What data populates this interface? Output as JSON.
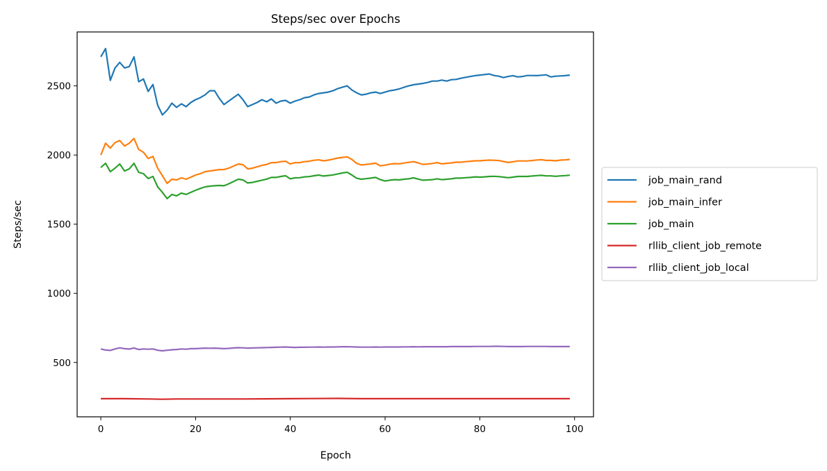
{
  "chart_data": {
    "type": "line",
    "title": "Steps/sec over Epochs",
    "xlabel": "Epoch",
    "ylabel": "Steps/sec",
    "xlim": [
      -5,
      104
    ],
    "ylim": [
      107,
      2890
    ],
    "xticks": [
      0,
      20,
      40,
      60,
      80,
      100
    ],
    "yticks": [
      500,
      1000,
      1500,
      2000,
      2500
    ],
    "legend_position": "center right (outside axes)",
    "grid": false,
    "series": [
      {
        "name": "job_main_rand",
        "color": "#1f77b4",
        "x": [
          0,
          1,
          2,
          3,
          4,
          5,
          6,
          7,
          8,
          9,
          10,
          11,
          12,
          13,
          14,
          15,
          16,
          17,
          18,
          19,
          20,
          21,
          22,
          23,
          24,
          25,
          26,
          27,
          28,
          29,
          30,
          31,
          32,
          33,
          34,
          35,
          36,
          37,
          38,
          39,
          40,
          41,
          42,
          43,
          44,
          45,
          46,
          47,
          48,
          49,
          50,
          51,
          52,
          53,
          54,
          55,
          56,
          57,
          58,
          59,
          60,
          61,
          62,
          63,
          64,
          65,
          66,
          67,
          68,
          69,
          70,
          71,
          72,
          73,
          74,
          75,
          76,
          77,
          78,
          79,
          80,
          81,
          82,
          83,
          84,
          85,
          86,
          87,
          88,
          89,
          90,
          91,
          92,
          93,
          94,
          95,
          96,
          97,
          98,
          99
        ],
        "values": [
          2710,
          2770,
          2540,
          2630,
          2670,
          2630,
          2640,
          2710,
          2530,
          2550,
          2460,
          2510,
          2360,
          2290,
          2325,
          2375,
          2345,
          2370,
          2350,
          2380,
          2400,
          2415,
          2435,
          2465,
          2465,
          2410,
          2365,
          2390,
          2415,
          2440,
          2400,
          2350,
          2365,
          2380,
          2400,
          2385,
          2405,
          2375,
          2390,
          2395,
          2375,
          2390,
          2400,
          2415,
          2420,
          2435,
          2445,
          2450,
          2455,
          2465,
          2480,
          2490,
          2500,
          2470,
          2450,
          2435,
          2440,
          2450,
          2455,
          2445,
          2455,
          2465,
          2470,
          2478,
          2490,
          2500,
          2508,
          2513,
          2518,
          2525,
          2535,
          2535,
          2542,
          2535,
          2545,
          2547,
          2555,
          2562,
          2568,
          2574,
          2578,
          2582,
          2586,
          2575,
          2570,
          2560,
          2568,
          2574,
          2565,
          2568,
          2575,
          2575,
          2574,
          2577,
          2580,
          2565,
          2570,
          2572,
          2574,
          2578
        ]
      },
      {
        "name": "job_main_infer",
        "color": "#ff7f0e",
        "x": [
          0,
          1,
          2,
          3,
          4,
          5,
          6,
          7,
          8,
          9,
          10,
          11,
          12,
          13,
          14,
          15,
          16,
          17,
          18,
          19,
          20,
          21,
          22,
          23,
          24,
          25,
          26,
          27,
          28,
          29,
          30,
          31,
          32,
          33,
          34,
          35,
          36,
          37,
          38,
          39,
          40,
          41,
          42,
          43,
          44,
          45,
          46,
          47,
          48,
          49,
          50,
          51,
          52,
          53,
          54,
          55,
          56,
          57,
          58,
          59,
          60,
          61,
          62,
          63,
          64,
          65,
          66,
          67,
          68,
          69,
          70,
          71,
          72,
          73,
          74,
          75,
          76,
          77,
          78,
          79,
          80,
          81,
          82,
          83,
          84,
          85,
          86,
          87,
          88,
          89,
          90,
          91,
          92,
          93,
          94,
          95,
          96,
          97,
          98,
          99
        ],
        "values": [
          2000,
          2085,
          2050,
          2090,
          2105,
          2065,
          2085,
          2120,
          2040,
          2020,
          1975,
          1990,
          1905,
          1850,
          1795,
          1825,
          1820,
          1835,
          1825,
          1840,
          1855,
          1865,
          1880,
          1885,
          1890,
          1895,
          1895,
          1905,
          1920,
          1935,
          1930,
          1900,
          1905,
          1915,
          1925,
          1932,
          1945,
          1945,
          1952,
          1955,
          1935,
          1945,
          1945,
          1952,
          1955,
          1962,
          1965,
          1958,
          1963,
          1970,
          1978,
          1983,
          1987,
          1968,
          1940,
          1928,
          1932,
          1936,
          1941,
          1922,
          1927,
          1934,
          1938,
          1936,
          1942,
          1947,
          1952,
          1943,
          1932,
          1935,
          1939,
          1945,
          1936,
          1940,
          1943,
          1948,
          1948,
          1952,
          1955,
          1958,
          1958,
          1961,
          1963,
          1962,
          1960,
          1953,
          1946,
          1951,
          1957,
          1957,
          1957,
          1960,
          1964,
          1966,
          1961,
          1961,
          1958,
          1963,
          1965,
          1968
        ]
      },
      {
        "name": "job_main",
        "color": "#2ca02c",
        "x": [
          0,
          1,
          2,
          3,
          4,
          5,
          6,
          7,
          8,
          9,
          10,
          11,
          12,
          13,
          14,
          15,
          16,
          17,
          18,
          19,
          20,
          21,
          22,
          23,
          24,
          25,
          26,
          27,
          28,
          29,
          30,
          31,
          32,
          33,
          34,
          35,
          36,
          37,
          38,
          39,
          40,
          41,
          42,
          43,
          44,
          45,
          46,
          47,
          48,
          49,
          50,
          51,
          52,
          53,
          54,
          55,
          56,
          57,
          58,
          59,
          60,
          61,
          62,
          63,
          64,
          65,
          66,
          67,
          68,
          69,
          70,
          71,
          72,
          73,
          74,
          75,
          76,
          77,
          78,
          79,
          80,
          81,
          82,
          83,
          84,
          85,
          86,
          87,
          88,
          89,
          90,
          91,
          92,
          93,
          94,
          95,
          96,
          97,
          98,
          99
        ],
        "values": [
          1910,
          1940,
          1880,
          1905,
          1935,
          1885,
          1900,
          1940,
          1875,
          1865,
          1830,
          1845,
          1770,
          1730,
          1685,
          1715,
          1705,
          1725,
          1715,
          1730,
          1745,
          1758,
          1770,
          1775,
          1778,
          1780,
          1778,
          1792,
          1808,
          1825,
          1820,
          1798,
          1802,
          1810,
          1818,
          1826,
          1838,
          1838,
          1845,
          1850,
          1828,
          1835,
          1836,
          1842,
          1844,
          1850,
          1855,
          1848,
          1852,
          1856,
          1863,
          1870,
          1876,
          1855,
          1832,
          1825,
          1829,
          1833,
          1838,
          1822,
          1812,
          1818,
          1822,
          1820,
          1825,
          1828,
          1835,
          1826,
          1818,
          1820,
          1822,
          1828,
          1822,
          1825,
          1828,
          1833,
          1833,
          1836,
          1838,
          1842,
          1840,
          1842,
          1845,
          1846,
          1844,
          1840,
          1836,
          1840,
          1845,
          1845,
          1845,
          1848,
          1851,
          1853,
          1849,
          1849,
          1846,
          1849,
          1851,
          1854
        ]
      },
      {
        "name": "rllib_client_job_remote",
        "color": "#d62728",
        "x": [
          0,
          5,
          10,
          13,
          16,
          20,
          25,
          30,
          35,
          40,
          45,
          50,
          55,
          60,
          65,
          70,
          75,
          80,
          85,
          90,
          95,
          99
        ],
        "values": [
          238,
          238,
          236,
          234,
          236,
          236,
          236,
          236,
          237,
          238,
          239,
          240,
          238,
          238,
          238,
          238,
          238,
          238,
          238,
          238,
          238,
          238
        ]
      },
      {
        "name": "rllib_client_job_local",
        "color": "#9467bd",
        "x": [
          0,
          1,
          2,
          3,
          4,
          5,
          6,
          7,
          8,
          9,
          10,
          11,
          12,
          13,
          14,
          15,
          16,
          17,
          18,
          19,
          20,
          21,
          22,
          23,
          24,
          25,
          26,
          27,
          28,
          29,
          30,
          31,
          32,
          33,
          34,
          35,
          36,
          37,
          38,
          39,
          40,
          41,
          42,
          43,
          44,
          45,
          46,
          47,
          48,
          49,
          50,
          51,
          52,
          53,
          54,
          55,
          56,
          57,
          58,
          59,
          60,
          61,
          62,
          63,
          64,
          65,
          66,
          67,
          68,
          69,
          70,
          71,
          72,
          73,
          74,
          75,
          76,
          77,
          78,
          79,
          80,
          81,
          82,
          83,
          84,
          85,
          86,
          87,
          88,
          89,
          90,
          91,
          92,
          93,
          94,
          95,
          96,
          97,
          98,
          99
        ],
        "values": [
          598,
          590,
          587,
          598,
          606,
          600,
          597,
          605,
          594,
          598,
          596,
          598,
          588,
          584,
          588,
          592,
          594,
          598,
          596,
          600,
          600,
          602,
          604,
          603,
          604,
          602,
          600,
          602,
          605,
          607,
          606,
          604,
          605,
          606,
          607,
          608,
          609,
          610,
          611,
          612,
          610,
          609,
          610,
          610,
          611,
          611,
          612,
          611,
          612,
          612,
          613,
          614,
          614,
          613,
          612,
          611,
          611,
          611,
          612,
          611,
          612,
          612,
          612,
          612,
          613,
          613,
          614,
          613,
          614,
          614,
          614,
          614,
          614,
          614,
          615,
          615,
          615,
          615,
          615,
          616,
          616,
          616,
          616,
          617,
          617,
          616,
          615,
          615,
          615,
          615,
          616,
          616,
          616,
          616,
          616,
          615,
          615,
          615,
          615,
          615
        ]
      }
    ]
  }
}
